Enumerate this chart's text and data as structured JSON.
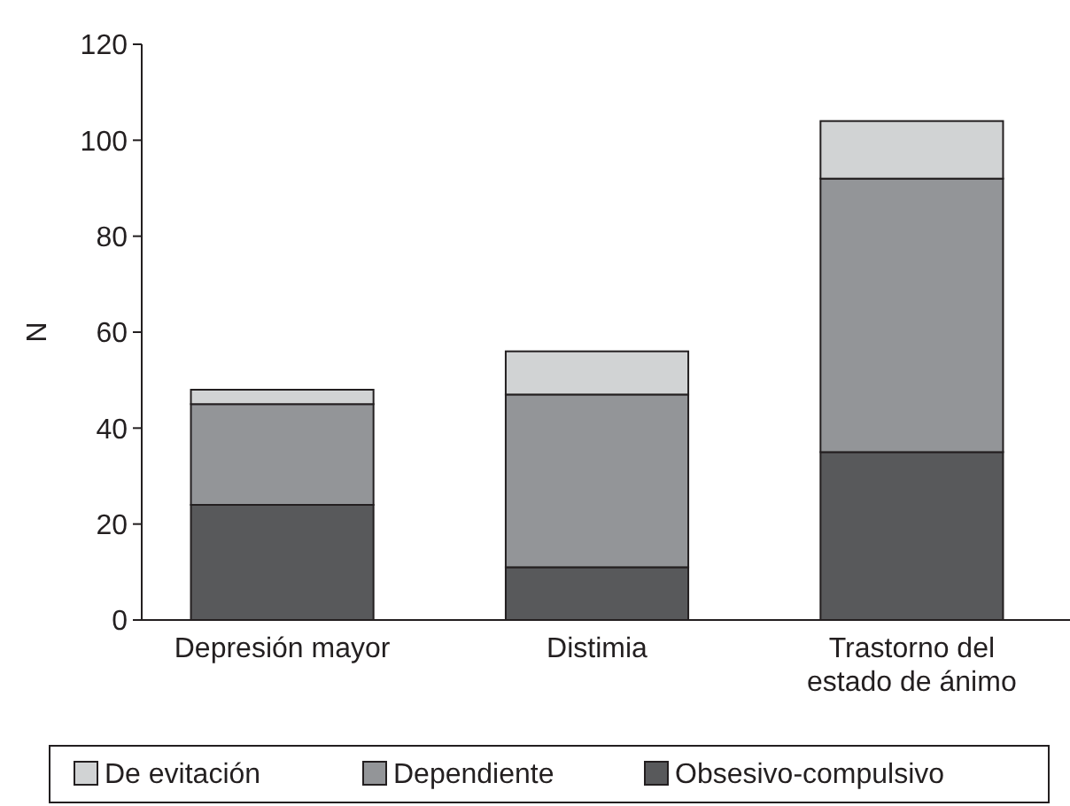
{
  "chart_data": {
    "type": "bar",
    "stacked": true,
    "ylabel": "N",
    "categories": [
      "Depresión mayor",
      "Distimia",
      "Trastorno del estado de ánimo"
    ],
    "series": [
      {
        "name": "Obsesivo-compulsivo",
        "color": "#58595b",
        "values": [
          24,
          11,
          35
        ]
      },
      {
        "name": "Dependiente",
        "color": "#939598",
        "values": [
          21,
          36,
          57
        ]
      },
      {
        "name": "De evitación",
        "color": "#d1d3d4",
        "values": [
          3,
          9,
          12
        ]
      }
    ],
    "ylim": [
      0,
      120
    ],
    "yticks": [
      0,
      20,
      40,
      60,
      80,
      100,
      120
    ],
    "grid": false,
    "legend": "bottom"
  }
}
